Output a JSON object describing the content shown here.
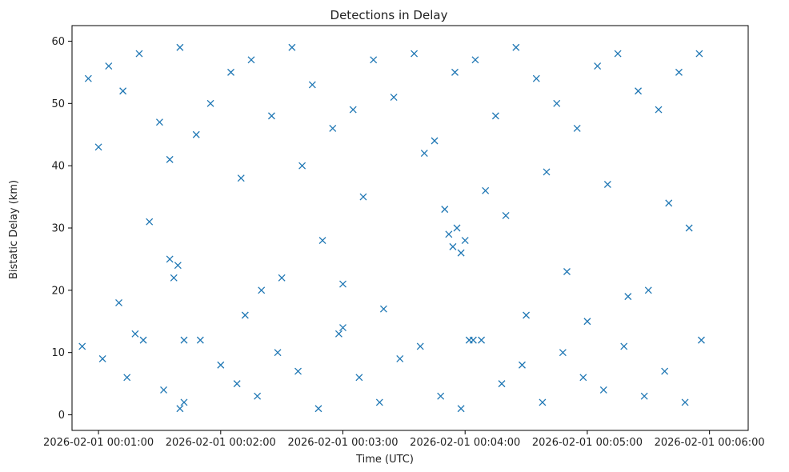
{
  "chart_data": {
    "type": "scatter",
    "title": "Detections in Delay",
    "xlabel": "Time (UTC)",
    "ylabel": "Bistatic Delay (km)",
    "x_ticks": [
      "2026-02-01 00:01:00",
      "2026-02-01 00:02:00",
      "2026-02-01 00:03:00",
      "2026-02-01 00:04:00",
      "2026-02-01 00:05:00",
      "2026-02-01 00:06:00"
    ],
    "y_ticks": [
      0,
      10,
      20,
      30,
      40,
      50,
      60
    ],
    "xlim": [
      "2026-02-01 00:00:47",
      "2026-02-01 00:06:19"
    ],
    "ylim": [
      -2.5,
      62.5
    ],
    "marker": "x",
    "grid": false,
    "colors": {
      "series": "#1f77b4",
      "axis": "#000000",
      "text": "#222222"
    },
    "series": [
      {
        "x": [
          "2026-02-01 00:00:55",
          "2026-02-01 00:01:05",
          "2026-02-01 00:01:12",
          "2026-02-01 00:01:20",
          "2026-02-01 00:01:30",
          "2026-02-01 00:01:40",
          "2026-02-01 00:01:48",
          "2026-02-01 00:01:55",
          "2026-02-01 00:02:05",
          "2026-02-01 00:02:15",
          "2026-02-01 00:02:25",
          "2026-02-01 00:02:35",
          "2026-02-01 00:02:45",
          "2026-02-01 00:02:55",
          "2026-02-01 00:03:05",
          "2026-02-01 00:03:15",
          "2026-02-01 00:03:25",
          "2026-02-01 00:03:35",
          "2026-02-01 00:03:45",
          "2026-02-01 00:03:55",
          "2026-02-01 00:04:05",
          "2026-02-01 00:04:15",
          "2026-02-01 00:04:25",
          "2026-02-01 00:04:35",
          "2026-02-01 00:04:45",
          "2026-02-01 00:04:55",
          "2026-02-01 00:05:05",
          "2026-02-01 00:05:15",
          "2026-02-01 00:05:25",
          "2026-02-01 00:05:35",
          "2026-02-01 00:05:45",
          "2026-02-01 00:05:55",
          "2026-02-01 00:01:00",
          "2026-02-01 00:01:35",
          "2026-02-01 00:02:10",
          "2026-02-01 00:02:40",
          "2026-02-01 00:03:10",
          "2026-02-01 00:03:40",
          "2026-02-01 00:04:10",
          "2026-02-01 00:04:40",
          "2026-02-01 00:05:10",
          "2026-02-01 00:05:40",
          "2026-02-01 00:01:25",
          "2026-02-01 00:02:50",
          "2026-02-01 00:04:20",
          "2026-02-01 00:05:50",
          "2026-02-01 00:03:50",
          "2026-02-01 00:03:52",
          "2026-02-01 00:03:54",
          "2026-02-01 00:03:56",
          "2026-02-01 00:03:58",
          "2026-02-01 00:04:00",
          "2026-02-01 00:01:35",
          "2026-02-01 00:01:37",
          "2026-02-01 00:01:39",
          "2026-02-01 00:03:00",
          "2026-02-01 00:02:20",
          "2026-02-01 00:04:50",
          "2026-02-01 00:05:20",
          "2026-02-01 00:01:10",
          "2026-02-01 00:02:30",
          "2026-02-01 00:03:20",
          "2026-02-01 00:04:30",
          "2026-02-01 00:05:30"
        ],
        "y": [
          54,
          56,
          52,
          58,
          47,
          59,
          45,
          50,
          55,
          57,
          48,
          59,
          53,
          46,
          49,
          57,
          51,
          58,
          44,
          55,
          57,
          48,
          59,
          54,
          50,
          46,
          56,
          58,
          52,
          49,
          55,
          58,
          43,
          41,
          38,
          40,
          35,
          42,
          36,
          39,
          37,
          34,
          31,
          28,
          32,
          30,
          33,
          29,
          27,
          30,
          26,
          28,
          25,
          22,
          24,
          21,
          20,
          23,
          19,
          18,
          22,
          17,
          16,
          20
        ]
      },
      {
        "x": [
          "2026-02-01 00:00:52",
          "2026-02-01 00:01:02",
          "2026-02-01 00:01:14",
          "2026-02-01 00:01:22",
          "2026-02-01 00:01:32",
          "2026-02-01 00:01:42",
          "2026-02-01 00:01:50",
          "2026-02-01 00:02:00",
          "2026-02-01 00:02:08",
          "2026-02-01 00:02:18",
          "2026-02-01 00:02:28",
          "2026-02-01 00:02:38",
          "2026-02-01 00:02:48",
          "2026-02-01 00:02:58",
          "2026-02-01 00:03:08",
          "2026-02-01 00:03:18",
          "2026-02-01 00:03:28",
          "2026-02-01 00:03:38",
          "2026-02-01 00:03:48",
          "2026-02-01 00:03:58",
          "2026-02-01 00:04:08",
          "2026-02-01 00:04:18",
          "2026-02-01 00:04:28",
          "2026-02-01 00:04:38",
          "2026-02-01 00:04:48",
          "2026-02-01 00:04:58",
          "2026-02-01 00:05:08",
          "2026-02-01 00:05:18",
          "2026-02-01 00:05:28",
          "2026-02-01 00:05:38",
          "2026-02-01 00:05:48",
          "2026-02-01 00:05:56",
          "2026-02-01 00:01:40",
          "2026-02-01 00:01:42",
          "2026-02-01 00:04:02",
          "2026-02-01 00:04:04",
          "2026-02-01 00:03:00",
          "2026-02-01 00:02:12",
          "2026-02-01 00:05:00",
          "2026-02-01 00:01:18"
        ],
        "y": [
          11,
          9,
          6,
          12,
          4,
          2,
          12,
          8,
          5,
          3,
          10,
          7,
          1,
          13,
          6,
          2,
          9,
          11,
          3,
          1,
          12,
          5,
          8,
          2,
          10,
          6,
          4,
          11,
          3,
          7,
          2,
          12,
          1,
          12,
          12,
          12,
          14,
          16,
          15,
          13
        ]
      }
    ]
  }
}
